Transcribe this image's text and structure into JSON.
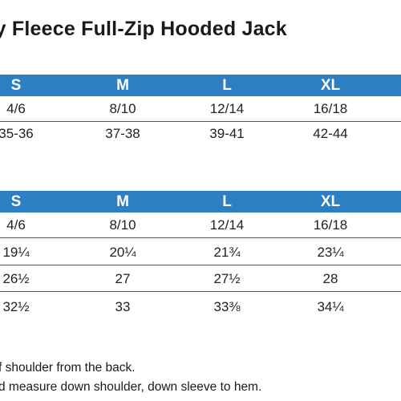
{
  "title": "ity Fleece Full-Zip Hooded Jack",
  "table1": {
    "headers": [
      "S",
      "M",
      "L",
      "XL"
    ],
    "rows": [
      [
        "4/6",
        "8/10",
        "12/14",
        "16/18"
      ],
      [
        "35-36",
        "37-38",
        "39-41",
        "42-44"
      ]
    ]
  },
  "table2": {
    "headers": [
      "S",
      "M",
      "L",
      "XL"
    ],
    "rows": [
      [
        "4/6",
        "8/10",
        "12/14",
        "16/18"
      ],
      [
        "19¼",
        "20¼",
        "21¾",
        "23¼"
      ],
      [
        "26½",
        "27",
        "27½",
        "28"
      ],
      [
        "32½",
        "33",
        "33⅜",
        "34¼"
      ]
    ]
  },
  "notes": [
    "f shoulder from the back.",
    "d measure down shoulder, down sleeve to hem."
  ],
  "colors": {
    "header_bg": "#2b7fc2",
    "header_text": "#ffffff",
    "text": "#222222"
  }
}
